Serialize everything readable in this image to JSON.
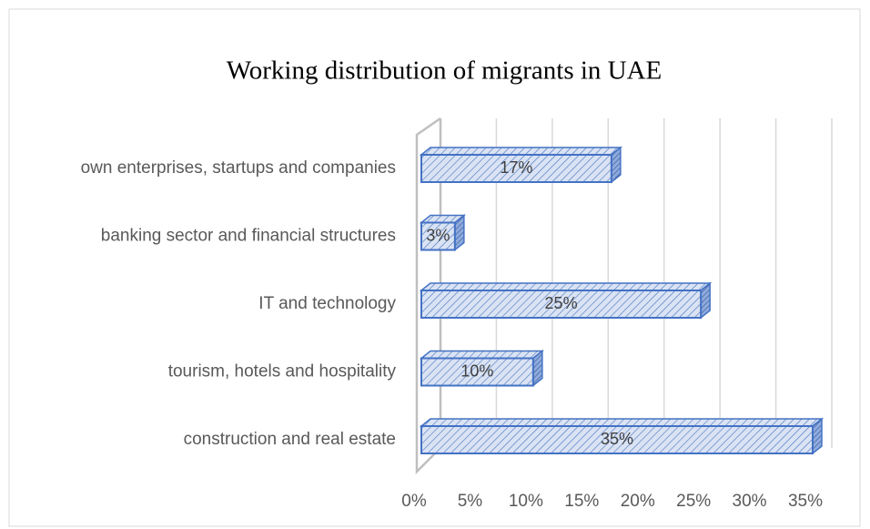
{
  "chart_data": {
    "type": "bar3d",
    "title": "Working distribution of migrants in UAE",
    "categories": [
      "own enterprises, startups and companies",
      "banking sector and financial structures",
      "IT and technology",
      "tourism, hotels and hospitality",
      "construction and real estate"
    ],
    "values": [
      17,
      3,
      25,
      10,
      35
    ],
    "value_labels": [
      "17%",
      "3%",
      "25%",
      "10%",
      "35%"
    ],
    "color": "#4472c4",
    "xlim": [
      0,
      35
    ],
    "xticks": [
      {
        "value": 0,
        "label": "0%"
      },
      {
        "value": 5,
        "label": "5%"
      },
      {
        "value": 10,
        "label": "10%"
      },
      {
        "value": 15,
        "label": "15%"
      },
      {
        "value": 20,
        "label": "20%"
      },
      {
        "value": 25,
        "label": "25%"
      },
      {
        "value": 30,
        "label": "30%"
      },
      {
        "value": 35,
        "label": "35%"
      }
    ],
    "grid": true
  }
}
